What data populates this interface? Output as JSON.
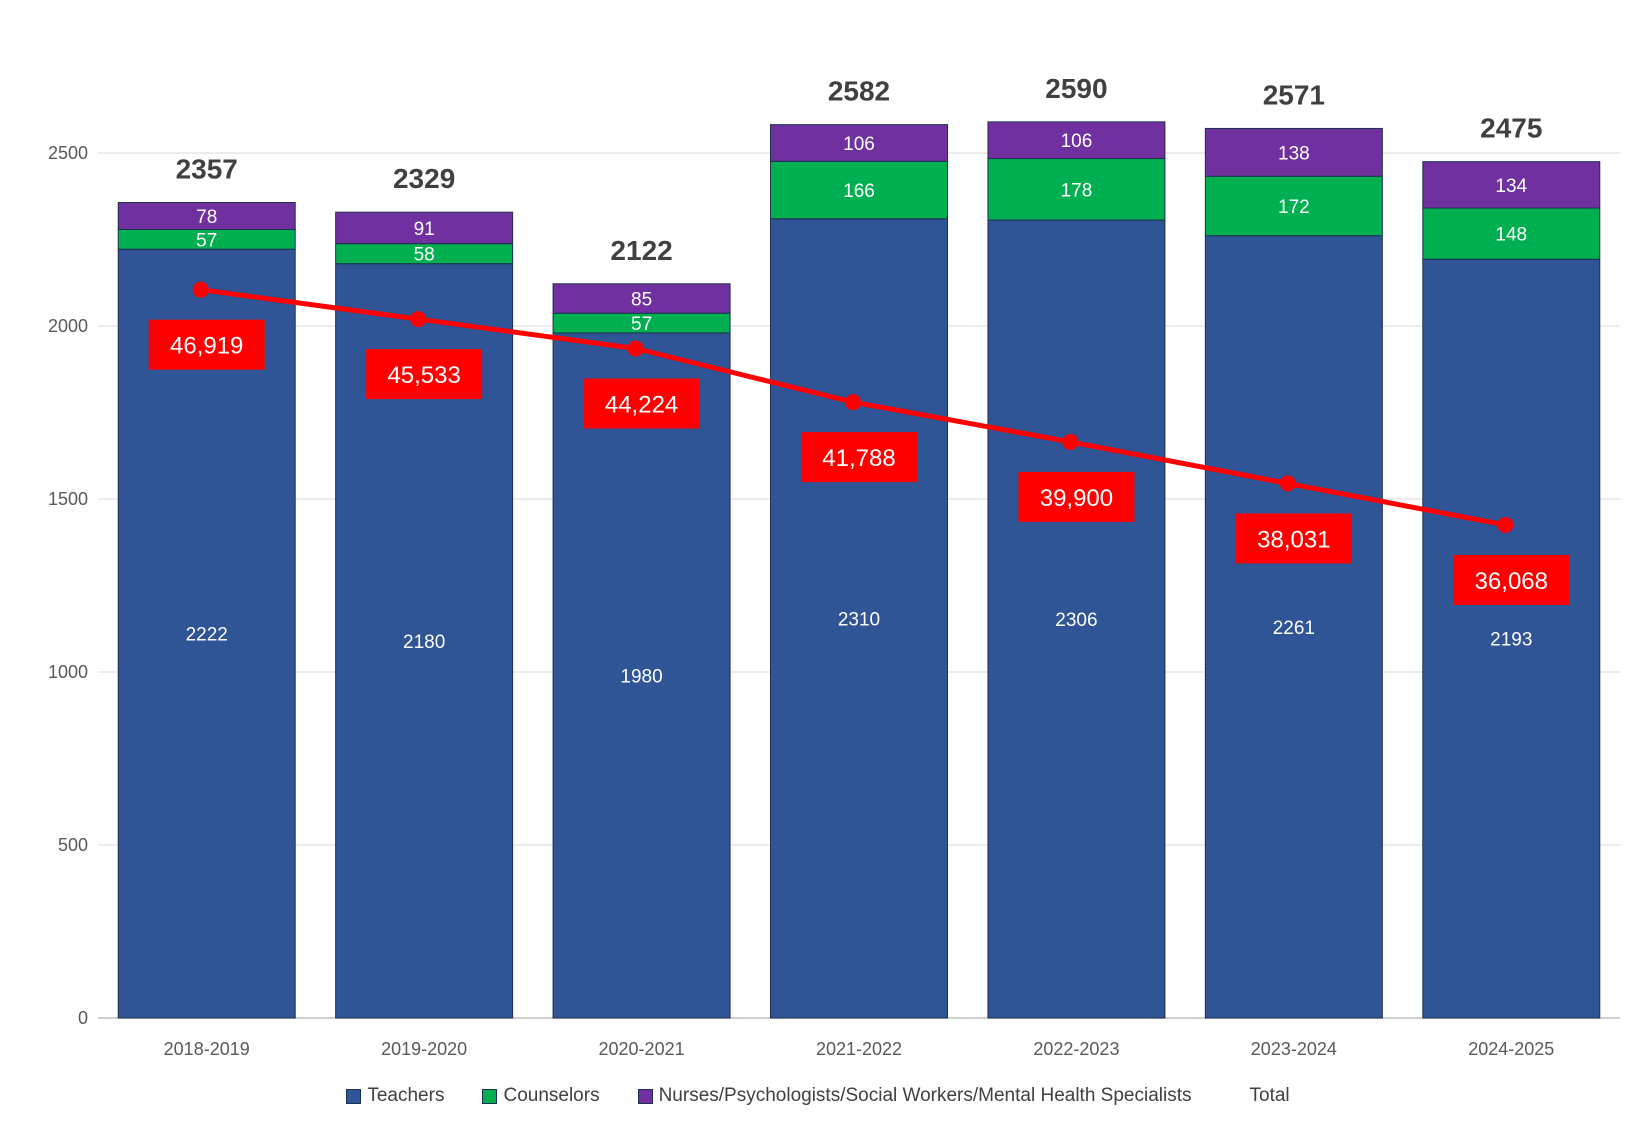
{
  "chart_data": {
    "type": "bar",
    "stacked": true,
    "categories": [
      "2018-2019",
      "2019-2020",
      "2020-2021",
      "2021-2022",
      "2022-2023",
      "2023-2024",
      "2024-2025"
    ],
    "series": [
      {
        "name": "Teachers",
        "color": "#2F5597",
        "values": [
          2222,
          2180,
          1980,
          2310,
          2306,
          2261,
          2193
        ]
      },
      {
        "name": "Counselors",
        "color": "#00B050",
        "values": [
          57,
          58,
          57,
          166,
          178,
          172,
          148
        ]
      },
      {
        "name": "Nurses/Psychologists/Social Workers/Mental Health Specialists",
        "color": "#7030A0",
        "values": [
          78,
          91,
          85,
          106,
          106,
          138,
          134
        ]
      }
    ],
    "totals": {
      "name": "Total",
      "values": [
        2357,
        2329,
        2122,
        2582,
        2590,
        2571,
        2475
      ],
      "labels": [
        "2357",
        "2329",
        "2122",
        "2582",
        "2590",
        "2571",
        "2475"
      ]
    },
    "line_series": {
      "color": "#FF0000",
      "values": [
        2105,
        2020,
        1935,
        1780,
        1665,
        1545,
        1425
      ],
      "labels": [
        "46,919",
        "45,533",
        "44,224",
        "41,788",
        "39,900",
        "38,031",
        "36,068"
      ]
    },
    "ylim": [
      0,
      2500
    ],
    "yticks": [
      0,
      500,
      1000,
      1500,
      2000,
      2500
    ],
    "grid": true,
    "legend": "bottom",
    "title": "",
    "xlabel": "",
    "ylabel": ""
  }
}
